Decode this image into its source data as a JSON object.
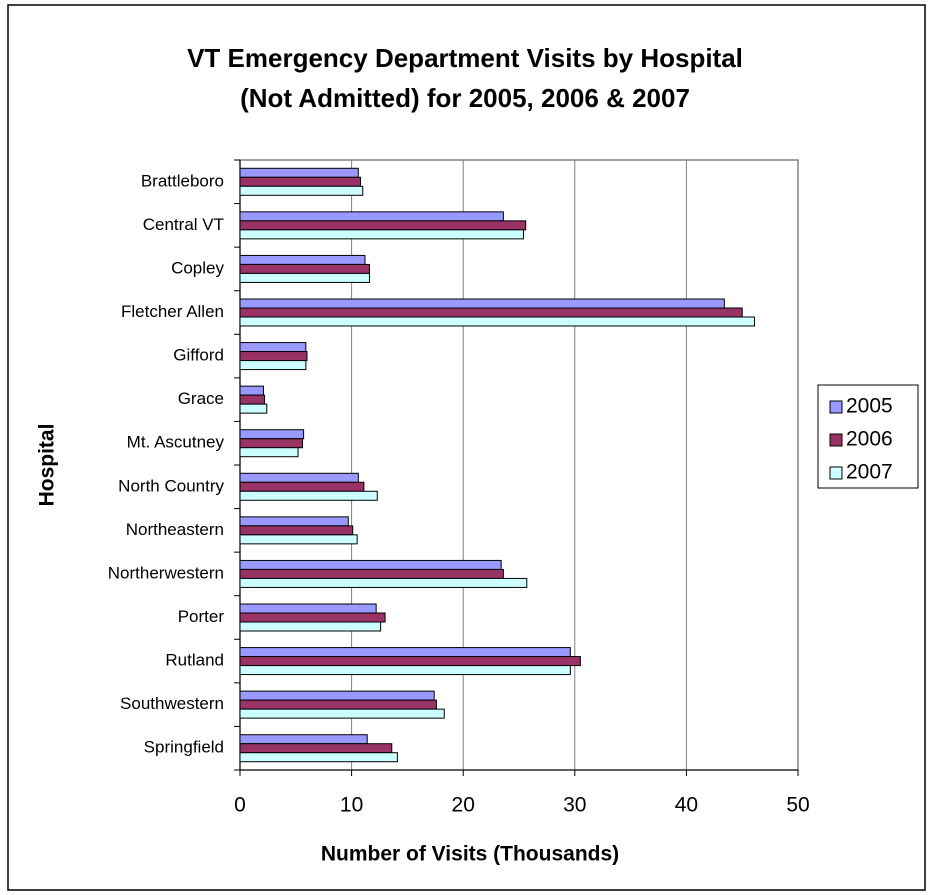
{
  "chart_data": {
    "type": "bar",
    "orientation": "horizontal",
    "title": "VT Emergency Department Visits by Hospital\n(Not Admitted) for 2005, 2006 & 2007",
    "x_label": "Number of Visits (Thousands)",
    "y_label": "Hospital",
    "categories": [
      "Brattleboro",
      "Central VT",
      "Copley",
      "Fletcher Allen",
      "Gifford",
      "Grace",
      "Mt. Ascutney",
      "North Country",
      "Northeastern",
      "Northerwestern",
      "Porter",
      "Rutland",
      "Southwestern",
      "Springfield"
    ],
    "series": [
      {
        "name": "2005",
        "color": "#9999ff",
        "values": [
          10.6,
          23.6,
          11.2,
          43.4,
          5.9,
          2.1,
          5.7,
          10.6,
          9.7,
          23.4,
          12.2,
          29.6,
          17.4,
          11.4
        ]
      },
      {
        "name": "2006",
        "color": "#993366",
        "values": [
          10.8,
          25.6,
          11.6,
          45.0,
          6.0,
          2.2,
          5.6,
          11.1,
          10.1,
          23.6,
          13.0,
          30.5,
          17.6,
          13.6
        ]
      },
      {
        "name": "2007",
        "color": "#ccffff",
        "values": [
          11.0,
          25.4,
          11.6,
          46.1,
          5.9,
          2.4,
          5.2,
          12.3,
          10.5,
          25.7,
          12.6,
          29.6,
          18.3,
          14.1
        ]
      }
    ],
    "xlim": [
      0,
      50
    ],
    "xticks": [
      0,
      10,
      20,
      30,
      40,
      50
    ],
    "grid": true,
    "legend": "right"
  }
}
